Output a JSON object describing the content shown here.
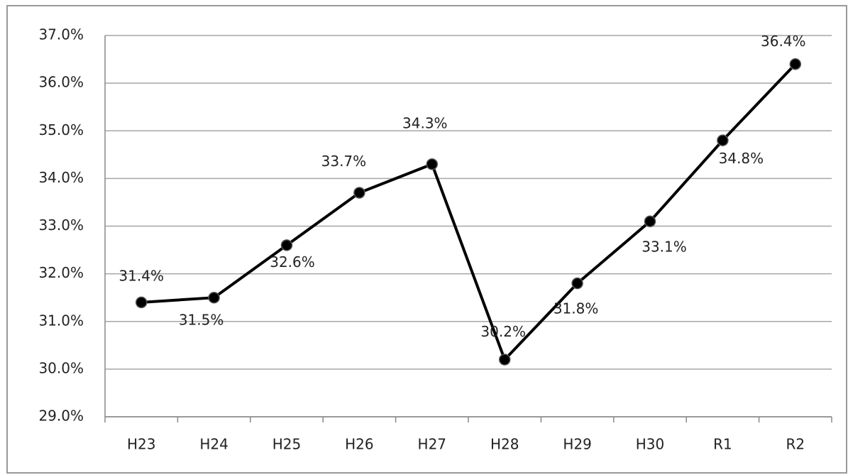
{
  "chart_data": {
    "type": "line",
    "categories": [
      "H23",
      "H24",
      "H25",
      "H26",
      "H27",
      "H28",
      "H29",
      "H30",
      "R1",
      "R2"
    ],
    "series": [
      {
        "color": "#000000",
        "values": [
          31.4,
          31.5,
          32.6,
          33.7,
          34.3,
          30.2,
          31.8,
          33.1,
          34.8,
          36.4
        ],
        "value_labels": [
          "31.4%",
          "31.5%",
          "32.6%",
          "33.7%",
          "34.3%",
          "30.2%",
          "31.8%",
          "33.1%",
          "34.8%",
          "36.4%"
        ]
      }
    ],
    "ylim": [
      29,
      37
    ],
    "yticks": [
      {
        "value": 29,
        "label": "29.0%"
      },
      {
        "value": 30,
        "label": "30.0%"
      },
      {
        "value": 31,
        "label": "31.0%"
      },
      {
        "value": 32,
        "label": "32.0%"
      },
      {
        "value": 33,
        "label": "33.0%"
      },
      {
        "value": 34,
        "label": "34.0%"
      },
      {
        "value": 35,
        "label": "35.0%"
      },
      {
        "value": 36,
        "label": "36.0%"
      },
      {
        "value": 37,
        "label": "37.0%"
      }
    ],
    "grid": true
  }
}
